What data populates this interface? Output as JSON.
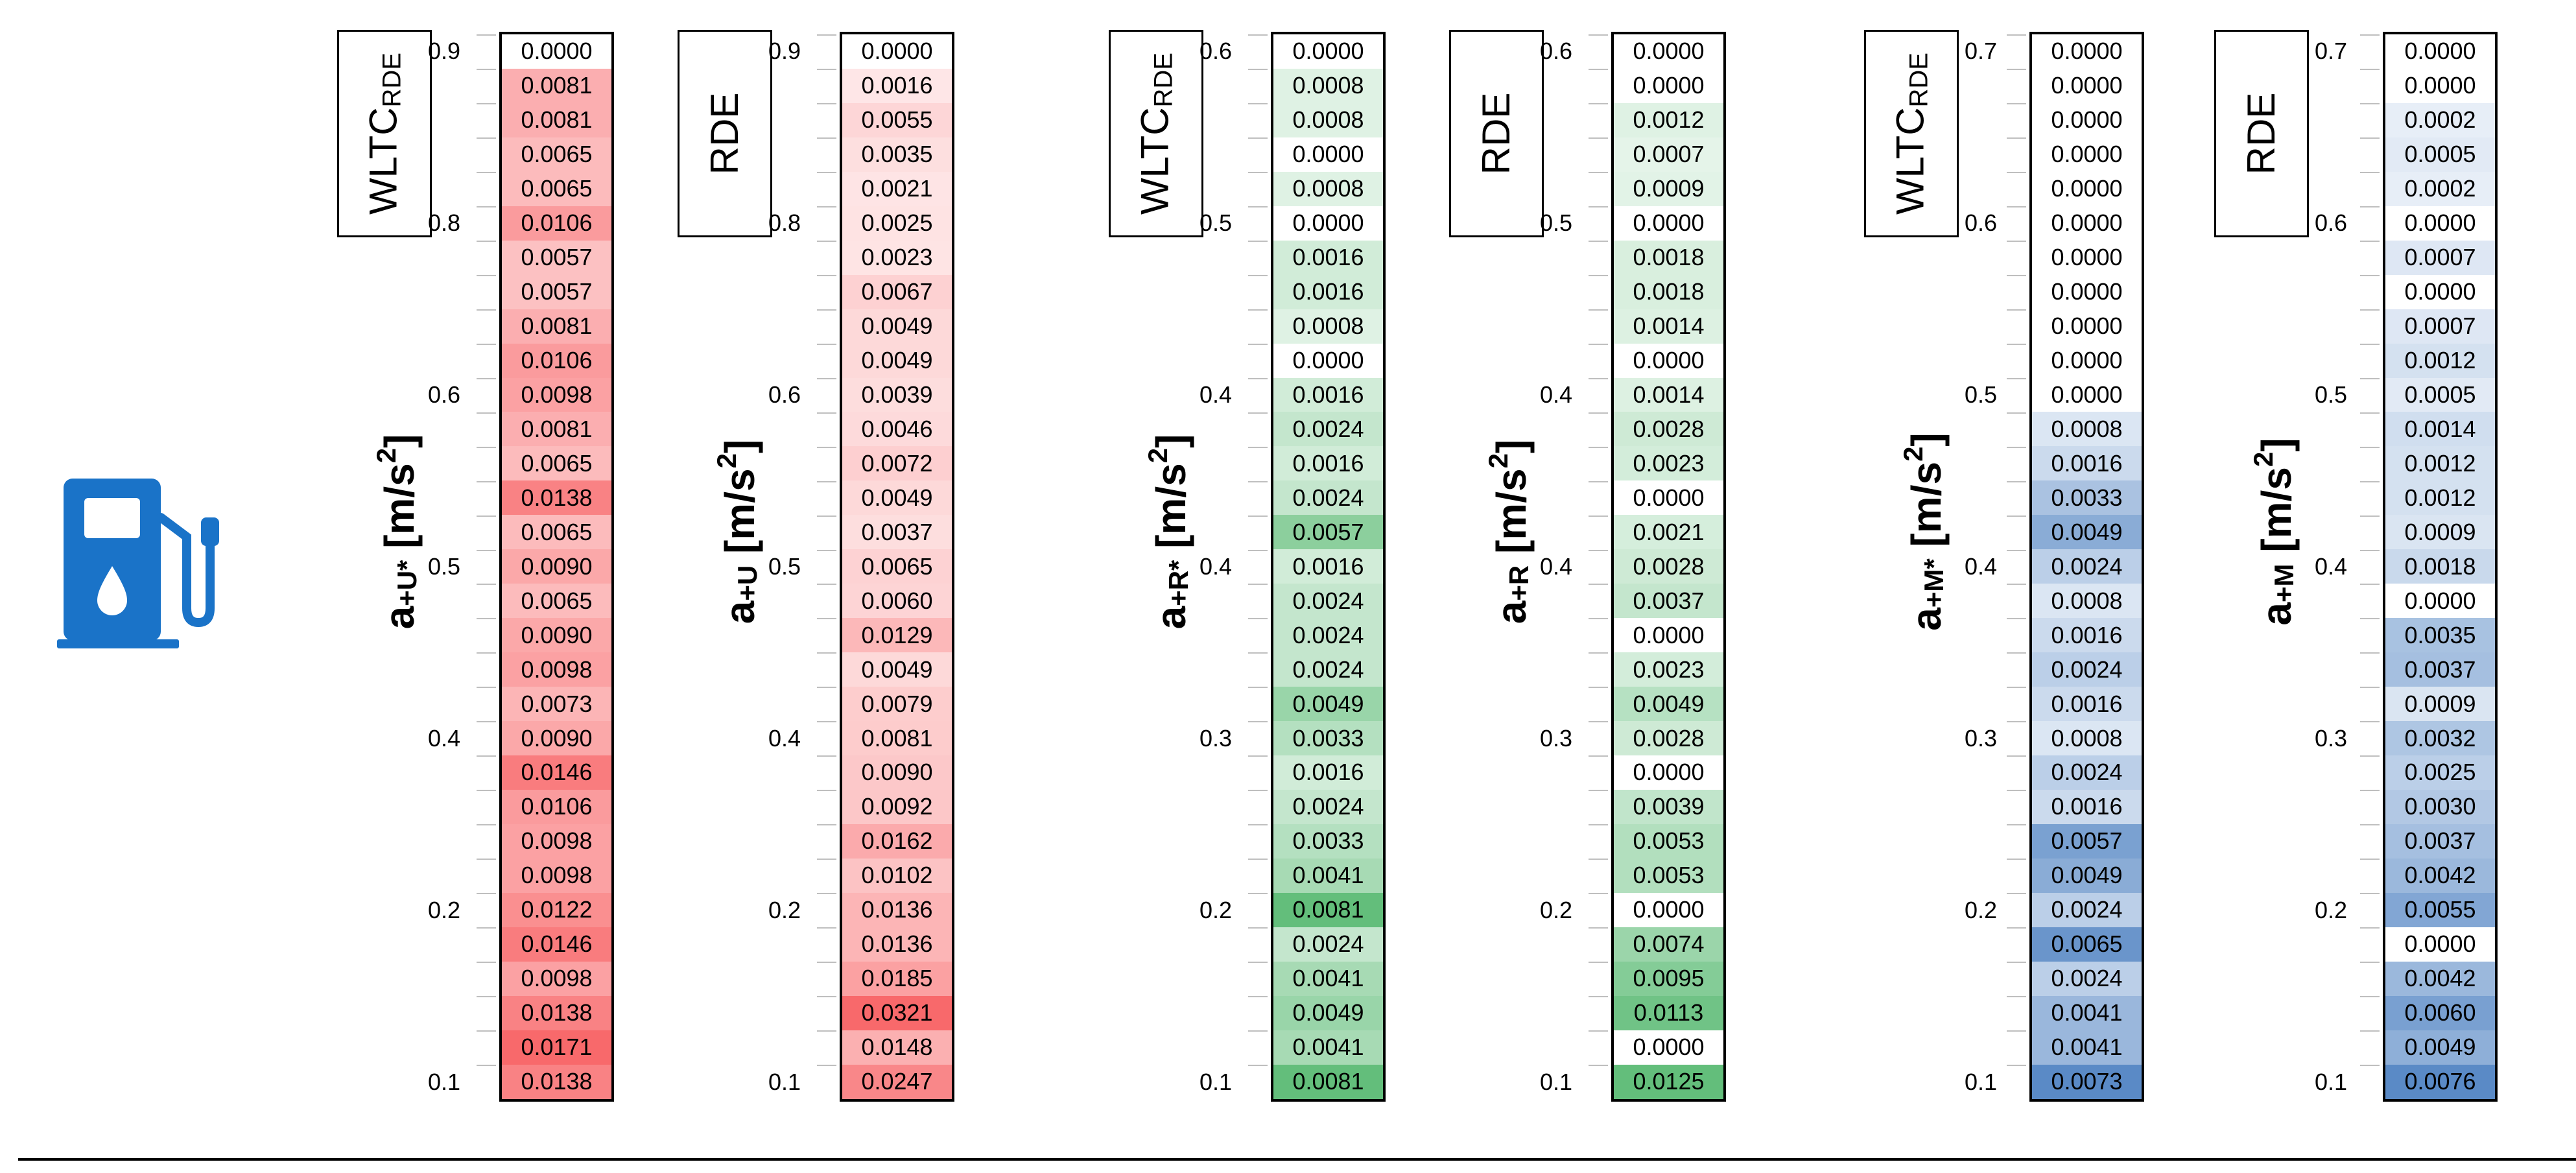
{
  "chart_data": [
    {
      "type": "table",
      "header": [
        "WLTC",
        "RDE"
      ],
      "ylabel": [
        "a",
        "+U*",
        " [m/s",
        "2",
        "]"
      ],
      "y_ticks": [
        "0.9",
        "0.8",
        "0.6",
        "0.5",
        "0.4",
        "0.2",
        "0.1"
      ],
      "values": [
        "0.0000",
        "0.0081",
        "0.0081",
        "0.0065",
        "0.0065",
        "0.0106",
        "0.0057",
        "0.0057",
        "0.0081",
        "0.0106",
        "0.0098",
        "0.0081",
        "0.0065",
        "0.0138",
        "0.0065",
        "0.0090",
        "0.0065",
        "0.0090",
        "0.0098",
        "0.0073",
        "0.0090",
        "0.0146",
        "0.0106",
        "0.0098",
        "0.0098",
        "0.0122",
        "0.0146",
        "0.0098",
        "0.0138",
        "0.0171",
        "0.0138"
      ]
    },
    {
      "type": "table",
      "header": [
        "RDE",
        ""
      ],
      "ylabel": [
        "a",
        "+U",
        " [m/s",
        "2",
        "]"
      ],
      "y_ticks": [
        "0.9",
        "0.8",
        "0.6",
        "0.5",
        "0.4",
        "0.2",
        "0.1"
      ],
      "values": [
        "0.0000",
        "0.0016",
        "0.0055",
        "0.0035",
        "0.0021",
        "0.0025",
        "0.0023",
        "0.0067",
        "0.0049",
        "0.0049",
        "0.0039",
        "0.0046",
        "0.0072",
        "0.0049",
        "0.0037",
        "0.0065",
        "0.0060",
        "0.0129",
        "0.0049",
        "0.0079",
        "0.0081",
        "0.0090",
        "0.0092",
        "0.0162",
        "0.0102",
        "0.0136",
        "0.0136",
        "0.0185",
        "0.0321",
        "0.0148",
        "0.0247"
      ]
    },
    {
      "type": "table",
      "header": [
        "WLTC",
        "RDE"
      ],
      "ylabel": [
        "a",
        "+R*",
        " [m/s",
        "2",
        "]"
      ],
      "y_ticks": [
        "0.6",
        "0.5",
        "0.4",
        "0.4",
        "0.3",
        "0.2",
        "0.1"
      ],
      "values": [
        "0.0000",
        "0.0008",
        "0.0008",
        "0.0000",
        "0.0008",
        "0.0000",
        "0.0016",
        "0.0016",
        "0.0008",
        "0.0000",
        "0.0016",
        "0.0024",
        "0.0016",
        "0.0024",
        "0.0057",
        "0.0016",
        "0.0024",
        "0.0024",
        "0.0024",
        "0.0049",
        "0.0033",
        "0.0016",
        "0.0024",
        "0.0033",
        "0.0041",
        "0.0081",
        "0.0024",
        "0.0041",
        "0.0049",
        "0.0041",
        "0.0081"
      ]
    },
    {
      "type": "table",
      "header": [
        "RDE",
        ""
      ],
      "ylabel": [
        "a",
        "+R",
        " [m/s",
        "2",
        "]"
      ],
      "y_ticks": [
        "0.6",
        "0.5",
        "0.4",
        "0.4",
        "0.3",
        "0.2",
        "0.1"
      ],
      "values": [
        "0.0000",
        "0.0000",
        "0.0012",
        "0.0007",
        "0.0009",
        "0.0000",
        "0.0018",
        "0.0018",
        "0.0014",
        "0.0000",
        "0.0014",
        "0.0028",
        "0.0023",
        "0.0000",
        "0.0021",
        "0.0028",
        "0.0037",
        "0.0000",
        "0.0023",
        "0.0049",
        "0.0028",
        "0.0000",
        "0.0039",
        "0.0053",
        "0.0053",
        "0.0000",
        "0.0074",
        "0.0095",
        "0.0113",
        "0.0000",
        "0.0125"
      ]
    },
    {
      "type": "table",
      "header": [
        "WLTC",
        "RDE"
      ],
      "ylabel": [
        "a",
        "+M*",
        " [m/s",
        "2",
        "]"
      ],
      "y_ticks": [
        "0.7",
        "0.6",
        "0.5",
        "0.4",
        "0.3",
        "0.2",
        "0.1"
      ],
      "values": [
        "0.0000",
        "0.0000",
        "0.0000",
        "0.0000",
        "0.0000",
        "0.0000",
        "0.0000",
        "0.0000",
        "0.0000",
        "0.0000",
        "0.0000",
        "0.0008",
        "0.0016",
        "0.0033",
        "0.0049",
        "0.0024",
        "0.0008",
        "0.0016",
        "0.0024",
        "0.0016",
        "0.0008",
        "0.0024",
        "0.0016",
        "0.0057",
        "0.0049",
        "0.0024",
        "0.0065",
        "0.0024",
        "0.0041",
        "0.0041",
        "0.0073"
      ]
    },
    {
      "type": "table",
      "header": [
        "RDE",
        ""
      ],
      "ylabel": [
        "a",
        "+M",
        " [m/s",
        "2",
        "]"
      ],
      "y_ticks": [
        "0.7",
        "0.6",
        "0.5",
        "0.4",
        "0.3",
        "0.2",
        "0.1"
      ],
      "values": [
        "0.0000",
        "0.0000",
        "0.0002",
        "0.0005",
        "0.0002",
        "0.0000",
        "0.0007",
        "0.0000",
        "0.0007",
        "0.0012",
        "0.0005",
        "0.0014",
        "0.0012",
        "0.0012",
        "0.0009",
        "0.0018",
        "0.0000",
        "0.0035",
        "0.0037",
        "0.0009",
        "0.0032",
        "0.0025",
        "0.0030",
        "0.0037",
        "0.0042",
        "0.0055",
        "0.0000",
        "0.0042",
        "0.0060",
        "0.0049",
        "0.0076"
      ]
    }
  ],
  "colors": {
    "red": "#f8696b",
    "green": "#63be7b",
    "blue": "#5a8ac6",
    "icon_blue": "#1a73c8"
  },
  "icons": {
    "fuel": "fuel-pump-icon"
  }
}
